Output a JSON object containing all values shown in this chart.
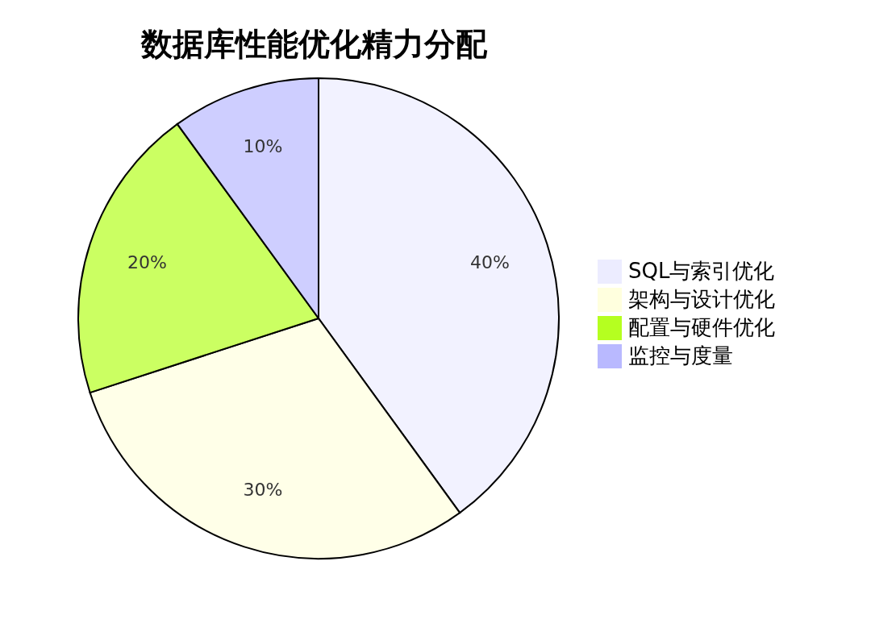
{
  "chart_data": {
    "type": "pie",
    "title": "数据库性能优化精力分配",
    "categories": [
      "SQL与索引优化",
      "架构与设计优化",
      "配置与硬件优化",
      "监控与度量"
    ],
    "values": [
      40,
      30,
      20,
      10
    ],
    "colors": [
      "#ececff",
      "#ffffde",
      "#b5ff20",
      "#b9b9ff"
    ],
    "value_labels": [
      "40%",
      "30%",
      "20%",
      "10%"
    ],
    "legend": "right"
  }
}
